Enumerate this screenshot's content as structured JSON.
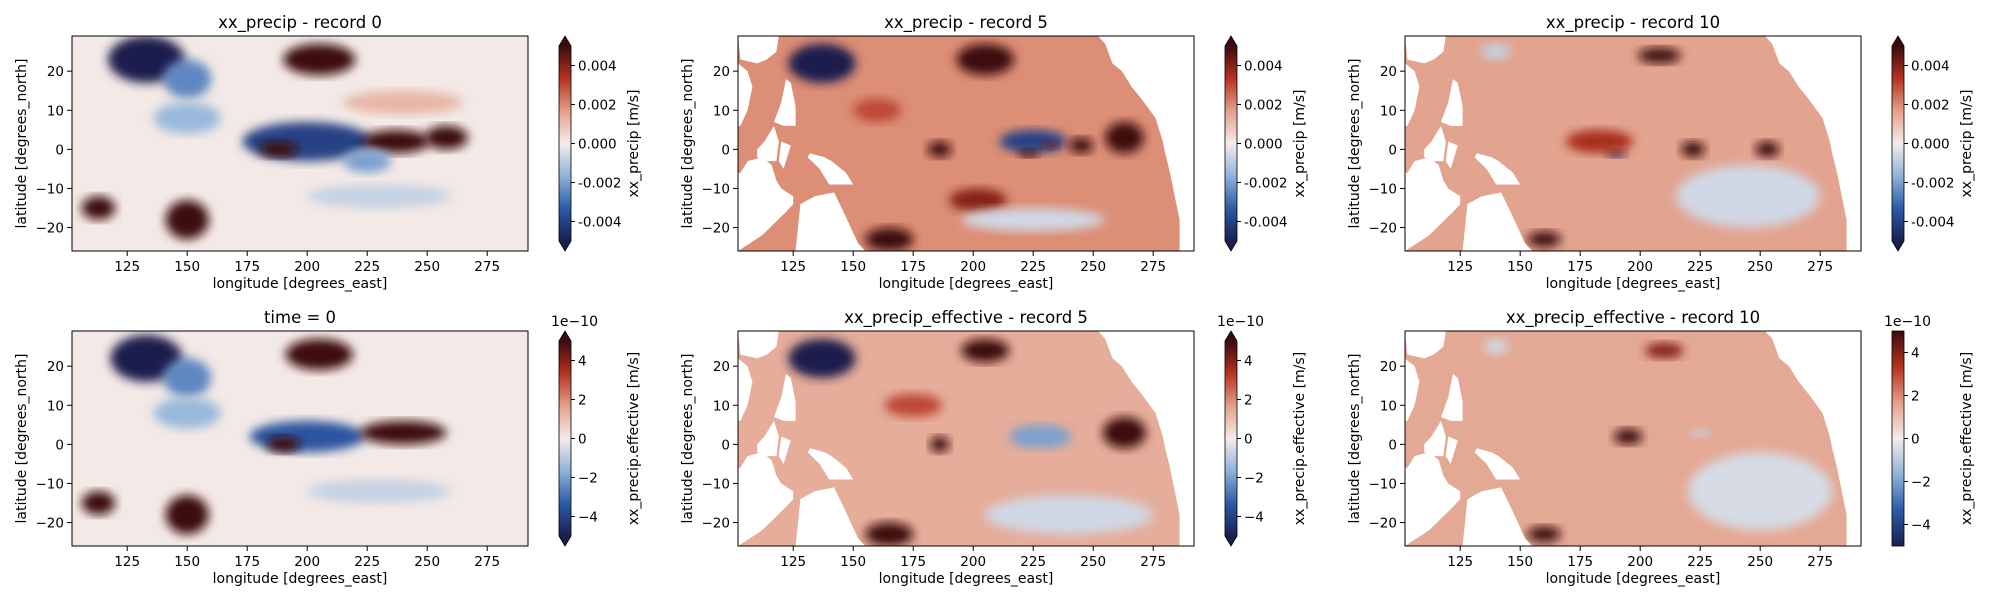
{
  "figure": {
    "rows": 2,
    "cols": 3
  },
  "chart_data": [
    {
      "type": "heatmap",
      "title": "xx_precip - record 0",
      "xlabel": "longitude [degrees_east]",
      "ylabel": "latitude [degrees_north]",
      "xlim": [
        102,
        292
      ],
      "ylim": [
        -26,
        29
      ],
      "xticks": [
        125,
        150,
        175,
        200,
        225,
        250,
        275
      ],
      "yticks": [
        -20,
        -10,
        0,
        10,
        20
      ],
      "colorbar": {
        "label": "xx_precip [m/s]",
        "vmin": -0.005,
        "vmax": 0.005,
        "ticks": [
          "0.004",
          "0.002",
          "0.000",
          "-0.002",
          "-0.004"
        ],
        "tick_values": [
          0.004,
          0.002,
          0.0,
          -0.002,
          -0.004
        ],
        "offset": "",
        "extend": "both",
        "colormap": "diverging blue-white-red",
        "colors": [
          "#1b1f4d",
          "#2c5aa8",
          "#8fb3d9",
          "#f4ecea",
          "#e3a08c",
          "#b5331f",
          "#3d0a0f"
        ]
      },
      "land_masked": false,
      "background": "#f3e9e6",
      "features": [
        {
          "lon": 133,
          "lat": 23,
          "value": -0.0055,
          "rx": 16,
          "ry": 6
        },
        {
          "lon": 150,
          "lat": 18,
          "value": -0.0025,
          "rx": 10,
          "ry": 5
        },
        {
          "lon": 205,
          "lat": 23,
          "value": 0.0055,
          "rx": 15,
          "ry": 4
        },
        {
          "lon": 200,
          "lat": 2,
          "value": -0.004,
          "rx": 27,
          "ry": 5
        },
        {
          "lon": 188,
          "lat": 0,
          "value": 0.006,
          "rx": 8,
          "ry": 2
        },
        {
          "lon": 237,
          "lat": 2,
          "value": 0.0055,
          "rx": 14,
          "ry": 3
        },
        {
          "lon": 258,
          "lat": 3,
          "value": 0.0055,
          "rx": 9,
          "ry": 3
        },
        {
          "lon": 225,
          "lat": -3,
          "value": -0.002,
          "rx": 10,
          "ry": 3
        },
        {
          "lon": 150,
          "lat": -18,
          "value": 0.006,
          "rx": 9,
          "ry": 5
        },
        {
          "lon": 113,
          "lat": -15,
          "value": 0.0055,
          "rx": 7,
          "ry": 3
        },
        {
          "lon": 150,
          "lat": 8,
          "value": -0.0015,
          "rx": 14,
          "ry": 4
        },
        {
          "lon": 240,
          "lat": 12,
          "value": 0.0012,
          "rx": 25,
          "ry": 3
        },
        {
          "lon": 230,
          "lat": -12,
          "value": -0.0008,
          "rx": 30,
          "ry": 3
        }
      ]
    },
    {
      "type": "heatmap",
      "title": "xx_precip - record 5",
      "xlabel": "longitude [degrees_east]",
      "ylabel": "latitude [degrees_north]",
      "xlim": [
        102,
        292
      ],
      "ylim": [
        -26,
        29
      ],
      "xticks": [
        125,
        150,
        175,
        200,
        225,
        250,
        275
      ],
      "yticks": [
        -20,
        -10,
        0,
        10,
        20
      ],
      "colorbar": {
        "label": "xx_precip [m/s]",
        "vmin": -0.005,
        "vmax": 0.005,
        "ticks": [
          "0.004",
          "0.002",
          "0.000",
          "-0.002",
          "-0.004"
        ],
        "tick_values": [
          0.004,
          0.002,
          0.0,
          -0.002,
          -0.004
        ],
        "offset": "",
        "extend": "both",
        "colormap": "diverging blue-white-red",
        "colors": [
          "#1b1f4d",
          "#2c5aa8",
          "#8fb3d9",
          "#f4ecea",
          "#e3a08c",
          "#b5331f",
          "#3d0a0f"
        ]
      },
      "land_masked": true,
      "background": "#dc8e76",
      "features": [
        {
          "lon": 137,
          "lat": 22,
          "value": -0.005,
          "rx": 14,
          "ry": 5
        },
        {
          "lon": 205,
          "lat": 23,
          "value": 0.006,
          "rx": 12,
          "ry": 4
        },
        {
          "lon": 225,
          "lat": 2,
          "value": -0.004,
          "rx": 14,
          "ry": 3
        },
        {
          "lon": 223,
          "lat": -1,
          "value": 0.005,
          "rx": 4,
          "ry": 1
        },
        {
          "lon": 232,
          "lat": 1,
          "value": 0.004,
          "rx": 3,
          "ry": 1
        },
        {
          "lon": 263,
          "lat": 3,
          "value": 0.006,
          "rx": 8,
          "ry": 4
        },
        {
          "lon": 186,
          "lat": 0,
          "value": 0.006,
          "rx": 5,
          "ry": 2
        },
        {
          "lon": 245,
          "lat": 1,
          "value": 0.005,
          "rx": 5,
          "ry": 2
        },
        {
          "lon": 165,
          "lat": -23,
          "value": 0.006,
          "rx": 10,
          "ry": 3
        },
        {
          "lon": 202,
          "lat": -13,
          "value": 0.004,
          "rx": 12,
          "ry": 3
        },
        {
          "lon": 225,
          "lat": -18,
          "value": -0.0006,
          "rx": 30,
          "ry": 3
        },
        {
          "lon": 160,
          "lat": 10,
          "value": 0.003,
          "rx": 10,
          "ry": 3
        }
      ]
    },
    {
      "type": "heatmap",
      "title": "xx_precip - record 10",
      "xlabel": "longitude [degrees_east]",
      "ylabel": "latitude [degrees_north]",
      "xlim": [
        102,
        292
      ],
      "ylim": [
        -26,
        29
      ],
      "xticks": [
        125,
        150,
        175,
        200,
        225,
        250,
        275
      ],
      "yticks": [
        -20,
        -10,
        0,
        10,
        20
      ],
      "colorbar": {
        "label": "xx_precip [m/s]",
        "vmin": -0.005,
        "vmax": 0.005,
        "ticks": [
          "0.004",
          "0.002",
          "0.000",
          "-0.002",
          "-0.004"
        ],
        "tick_values": [
          0.004,
          0.002,
          0.0,
          -0.002,
          -0.004
        ],
        "offset": "",
        "extend": "both",
        "colormap": "diverging blue-white-red",
        "colors": [
          "#1b1f4d",
          "#2c5aa8",
          "#8fb3d9",
          "#f4ecea",
          "#e3a08c",
          "#b5331f",
          "#3d0a0f"
        ]
      },
      "land_masked": true,
      "background": "#e2a48f",
      "features": [
        {
          "lon": 140,
          "lat": 25,
          "value": -0.0008,
          "rx": 6,
          "ry": 2
        },
        {
          "lon": 208,
          "lat": 24,
          "value": 0.006,
          "rx": 9,
          "ry": 2
        },
        {
          "lon": 190,
          "lat": -1,
          "value": -0.005,
          "rx": 4,
          "ry": 1
        },
        {
          "lon": 222,
          "lat": 0,
          "value": 0.006,
          "rx": 5,
          "ry": 2
        },
        {
          "lon": 253,
          "lat": 0,
          "value": 0.006,
          "rx": 5,
          "ry": 2
        },
        {
          "lon": 160,
          "lat": -23,
          "value": 0.006,
          "rx": 7,
          "ry": 2
        },
        {
          "lon": 183,
          "lat": 2,
          "value": 0.0035,
          "rx": 14,
          "ry": 3
        },
        {
          "lon": 245,
          "lat": -12,
          "value": -0.0006,
          "rx": 30,
          "ry": 8
        }
      ]
    },
    {
      "type": "heatmap",
      "title": "time = 0",
      "xlabel": "longitude [degrees_east]",
      "ylabel": "latitude [degrees_north]",
      "xlim": [
        102,
        292
      ],
      "ylim": [
        -26,
        29
      ],
      "xticks": [
        125,
        150,
        175,
        200,
        225,
        250,
        275
      ],
      "yticks": [
        -20,
        -10,
        0,
        10,
        20
      ],
      "colorbar": {
        "label": "xx_precip.effective [m/s]",
        "vmin": -5,
        "vmax": 5,
        "ticks": [
          "4",
          "2",
          "0",
          "−2",
          "−4"
        ],
        "tick_values": [
          4,
          2,
          0,
          -2,
          -4
        ],
        "offset": "1e−10",
        "extend": "both",
        "colormap": "diverging blue-white-red",
        "colors": [
          "#1b1f4d",
          "#2c5aa8",
          "#8fb3d9",
          "#f4ecea",
          "#e3a08c",
          "#b5331f",
          "#3d0a0f"
        ]
      },
      "land_masked": false,
      "background": "#f3e9e6",
      "features": [
        {
          "lon": 133,
          "lat": 22,
          "value": -5.5,
          "rx": 15,
          "ry": 6
        },
        {
          "lon": 150,
          "lat": 17,
          "value": -2.5,
          "rx": 10,
          "ry": 5
        },
        {
          "lon": 205,
          "lat": 23,
          "value": 5.5,
          "rx": 14,
          "ry": 4
        },
        {
          "lon": 200,
          "lat": 2,
          "value": -3.5,
          "rx": 24,
          "ry": 4
        },
        {
          "lon": 190,
          "lat": 0,
          "value": 6,
          "rx": 7,
          "ry": 2
        },
        {
          "lon": 240,
          "lat": 3,
          "value": 5.5,
          "rx": 18,
          "ry": 3
        },
        {
          "lon": 150,
          "lat": -18,
          "value": 6,
          "rx": 9,
          "ry": 5
        },
        {
          "lon": 113,
          "lat": -15,
          "value": 5.5,
          "rx": 7,
          "ry": 3
        },
        {
          "lon": 150,
          "lat": 8,
          "value": -1.5,
          "rx": 14,
          "ry": 4
        },
        {
          "lon": 230,
          "lat": -12,
          "value": -0.8,
          "rx": 30,
          "ry": 3
        }
      ]
    },
    {
      "type": "heatmap",
      "title": "xx_precip_effective - record 5",
      "xlabel": "longitude [degrees_east]",
      "ylabel": "latitude [degrees_north]",
      "xlim": [
        102,
        292
      ],
      "ylim": [
        -26,
        29
      ],
      "xticks": [
        125,
        150,
        175,
        200,
        225,
        250,
        275
      ],
      "yticks": [
        -20,
        -10,
        0,
        10,
        20
      ],
      "colorbar": {
        "label": "xx_precip.effective [m/s]",
        "vmin": -5,
        "vmax": 5,
        "ticks": [
          "4",
          "2",
          "0",
          "−2",
          "−4"
        ],
        "tick_values": [
          4,
          2,
          0,
          -2,
          -4
        ],
        "offset": "1e−10",
        "extend": "both",
        "colormap": "diverging blue-white-red",
        "colors": [
          "#1b1f4d",
          "#2c5aa8",
          "#8fb3d9",
          "#f4ecea",
          "#e3a08c",
          "#b5331f",
          "#3d0a0f"
        ]
      },
      "land_masked": true,
      "background": "#e5ad9a",
      "features": [
        {
          "lon": 137,
          "lat": 22,
          "value": -5,
          "rx": 14,
          "ry": 5
        },
        {
          "lon": 205,
          "lat": 24,
          "value": 6,
          "rx": 10,
          "ry": 3
        },
        {
          "lon": 228,
          "lat": 2,
          "value": -2,
          "rx": 13,
          "ry": 3
        },
        {
          "lon": 263,
          "lat": 3,
          "value": 6,
          "rx": 9,
          "ry": 4
        },
        {
          "lon": 186,
          "lat": 0,
          "value": 6,
          "rx": 4,
          "ry": 2
        },
        {
          "lon": 165,
          "lat": -23,
          "value": 6,
          "rx": 10,
          "ry": 3
        },
        {
          "lon": 240,
          "lat": -18,
          "value": -0.6,
          "rx": 35,
          "ry": 5
        },
        {
          "lon": 175,
          "lat": 10,
          "value": 3,
          "rx": 12,
          "ry": 3
        }
      ]
    },
    {
      "type": "heatmap",
      "title": "xx_precip_effective - record 10",
      "xlabel": "longitude [degrees_east]",
      "ylabel": "latitude [degrees_north]",
      "xlim": [
        102,
        292
      ],
      "ylim": [
        -26,
        29
      ],
      "xticks": [
        125,
        150,
        175,
        200,
        225,
        250,
        275
      ],
      "yticks": [
        -20,
        -10,
        0,
        10,
        20
      ],
      "colorbar": {
        "label": "xx_precip.effective [m/s]",
        "vmin": -5,
        "vmax": 5,
        "ticks": [
          "4",
          "2",
          "0",
          "−2",
          "−4"
        ],
        "tick_values": [
          4,
          2,
          0,
          -2,
          -4
        ],
        "offset": "1e−10",
        "extend": "neither",
        "colormap": "diverging blue-white-red",
        "colors": [
          "#1b1f4d",
          "#2c5aa8",
          "#8fb3d9",
          "#f4ecea",
          "#e3a08c",
          "#b5331f",
          "#3d0a0f"
        ]
      },
      "land_masked": true,
      "background": "#e4a995",
      "features": [
        {
          "lon": 140,
          "lat": 25,
          "value": -0.6,
          "rx": 5,
          "ry": 2
        },
        {
          "lon": 210,
          "lat": 24,
          "value": 4,
          "rx": 8,
          "ry": 2
        },
        {
          "lon": 195,
          "lat": 2,
          "value": 6,
          "rx": 6,
          "ry": 2
        },
        {
          "lon": 225,
          "lat": 3,
          "value": -0.8,
          "rx": 4,
          "ry": 1
        },
        {
          "lon": 160,
          "lat": -23,
          "value": 6,
          "rx": 7,
          "ry": 2
        },
        {
          "lon": 250,
          "lat": -12,
          "value": -0.5,
          "rx": 30,
          "ry": 10
        }
      ]
    }
  ]
}
